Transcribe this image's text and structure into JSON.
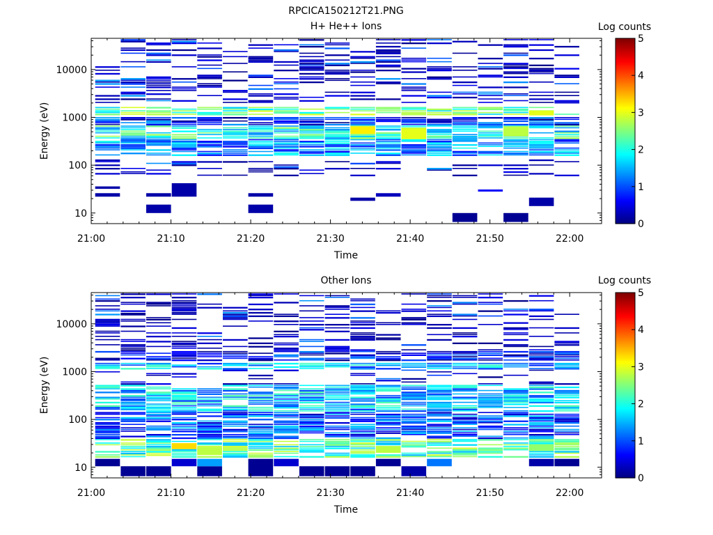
{
  "figure": {
    "title": "RPCICA150212T21.PNG"
  },
  "colorbar_stops": [
    "#00007f",
    "#0000ff",
    "#007fff",
    "#00ffff",
    "#7fff7f",
    "#ffff00",
    "#ff7f00",
    "#ff0000",
    "#7f0000"
  ],
  "chart_data": [
    {
      "type": "heatmap",
      "title": "H+ He++ Ions",
      "xlabel": "Time",
      "ylabel": "Energy (eV)",
      "x_ticks": [
        "21:00",
        "21:10",
        "21:20",
        "21:30",
        "21:40",
        "21:50",
        "22:00"
      ],
      "x_range_minutes": [
        0,
        64
      ],
      "y_scale": "log",
      "y_range": [
        6,
        45000
      ],
      "y_ticks": [
        "10",
        "100",
        "1000",
        "10000"
      ],
      "colorbar": {
        "label": "Log counts",
        "range": [
          0,
          5
        ],
        "ticks": [
          "0",
          "1",
          "2",
          "3",
          "4",
          "5"
        ]
      },
      "grid": false,
      "bands": [
        {
          "emin": 1100,
          "emax": 1600,
          "c": 2.3
        },
        {
          "emin": 350,
          "emax": 650,
          "c": 2.0
        },
        {
          "emin": 150,
          "emax": 350,
          "c": 1.3
        },
        {
          "emin": 700,
          "emax": 1000,
          "c": 0.7
        }
      ],
      "sparse_above": 2000,
      "sparse_below": 130,
      "low_blocks": [
        {
          "col": 0,
          "emin": 22,
          "emax": 26,
          "c": 0.2
        },
        {
          "col": 0,
          "emin": 32,
          "emax": 36,
          "c": 0.2
        },
        {
          "col": 2,
          "emin": 10,
          "emax": 15,
          "c": 0.2
        },
        {
          "col": 2,
          "emin": 22,
          "emax": 26,
          "c": 0.2
        },
        {
          "col": 3,
          "emin": 22,
          "emax": 42,
          "c": 0.2
        },
        {
          "col": 6,
          "emin": 10,
          "emax": 15,
          "c": 0.2
        },
        {
          "col": 6,
          "emin": 22,
          "emax": 26,
          "c": 0.2
        },
        {
          "col": 10,
          "emin": 18,
          "emax": 21,
          "c": 0.2
        },
        {
          "col": 11,
          "emin": 22,
          "emax": 26,
          "c": 0.3
        },
        {
          "col": 14,
          "emin": 6.5,
          "emax": 10,
          "c": 0.1
        },
        {
          "col": 15,
          "emin": 28,
          "emax": 31,
          "c": 0.6
        },
        {
          "col": 16,
          "emin": 6.5,
          "emax": 10,
          "c": 0.1
        },
        {
          "col": 17,
          "emin": 14,
          "emax": 21,
          "c": 0.2
        }
      ],
      "hot_spots": [
        {
          "col": 10,
          "emin": 450,
          "emax": 650,
          "c": 3.2
        },
        {
          "col": 12,
          "emin": 350,
          "emax": 600,
          "c": 3.0
        },
        {
          "col": 16,
          "emin": 400,
          "emax": 650,
          "c": 2.8
        },
        {
          "col": 17,
          "emin": 1100,
          "emax": 1400,
          "c": 3.0
        }
      ]
    },
    {
      "type": "heatmap",
      "title": "Other Ions",
      "xlabel": "Time",
      "ylabel": "Energy (eV)",
      "x_ticks": [
        "21:00",
        "21:10",
        "21:20",
        "21:30",
        "21:40",
        "21:50",
        "22:00"
      ],
      "x_range_minutes": [
        0,
        64
      ],
      "y_scale": "log",
      "y_range": [
        6,
        45000
      ],
      "y_ticks": [
        "10",
        "100",
        "1000",
        "10000"
      ],
      "colorbar": {
        "label": "Log counts",
        "range": [
          0,
          5
        ],
        "ticks": [
          "0",
          "1",
          "2",
          "3",
          "4",
          "5"
        ]
      },
      "grid": false,
      "bands": [
        {
          "emin": 16,
          "emax": 38,
          "c": 2.2
        },
        {
          "emin": 40,
          "emax": 140,
          "c": 1.0
        },
        {
          "emin": 140,
          "emax": 550,
          "c": 1.6
        },
        {
          "emin": 1100,
          "emax": 1500,
          "c": 1.5
        },
        {
          "emin": 1700,
          "emax": 2600,
          "c": 0.6
        }
      ],
      "sparse_above": 2600,
      "sparse_below": 0,
      "low_blocks": [
        {
          "col": 0,
          "emin": 10.5,
          "emax": 15,
          "c": 0.1
        },
        {
          "col": 1,
          "emin": 6.5,
          "emax": 10.5,
          "c": 0.1
        },
        {
          "col": 2,
          "emin": 6.5,
          "emax": 10.5,
          "c": 0.1
        },
        {
          "col": 3,
          "emin": 10.5,
          "emax": 15,
          "c": 0.4
        },
        {
          "col": 4,
          "emin": 6.5,
          "emax": 10.5,
          "c": 0.1
        },
        {
          "col": 4,
          "emin": 10.5,
          "emax": 15,
          "c": 1.4
        },
        {
          "col": 6,
          "emin": 6.5,
          "emax": 15,
          "c": 0.1
        },
        {
          "col": 7,
          "emin": 10.5,
          "emax": 15,
          "c": 0.4
        },
        {
          "col": 8,
          "emin": 6.5,
          "emax": 10.5,
          "c": 0.1
        },
        {
          "col": 9,
          "emin": 6.5,
          "emax": 10.5,
          "c": 0.1
        },
        {
          "col": 10,
          "emin": 6.5,
          "emax": 10.5,
          "c": 0.1
        },
        {
          "col": 11,
          "emin": 10.5,
          "emax": 15,
          "c": 0.1
        },
        {
          "col": 12,
          "emin": 6.5,
          "emax": 10.5,
          "c": 0.2
        },
        {
          "col": 13,
          "emin": 10.5,
          "emax": 15,
          "c": 1.2
        },
        {
          "col": 17,
          "emin": 10.5,
          "emax": 15,
          "c": 0.2
        },
        {
          "col": 18,
          "emin": 10.5,
          "emax": 15,
          "c": 0.1
        },
        {
          "col": 1,
          "emin": 15000,
          "emax": 17000,
          "c": 0.1
        },
        {
          "col": 2,
          "emin": 25000,
          "emax": 27500,
          "c": 0.1
        }
      ],
      "hot_spots": [
        {
          "col": 3,
          "emin": 24,
          "emax": 32,
          "c": 3.3
        },
        {
          "col": 4,
          "emin": 18,
          "emax": 26,
          "c": 2.8
        },
        {
          "col": 11,
          "emin": 20,
          "emax": 28,
          "c": 2.8
        },
        {
          "col": 17,
          "emin": 22,
          "emax": 30,
          "c": 2.6
        }
      ]
    }
  ]
}
